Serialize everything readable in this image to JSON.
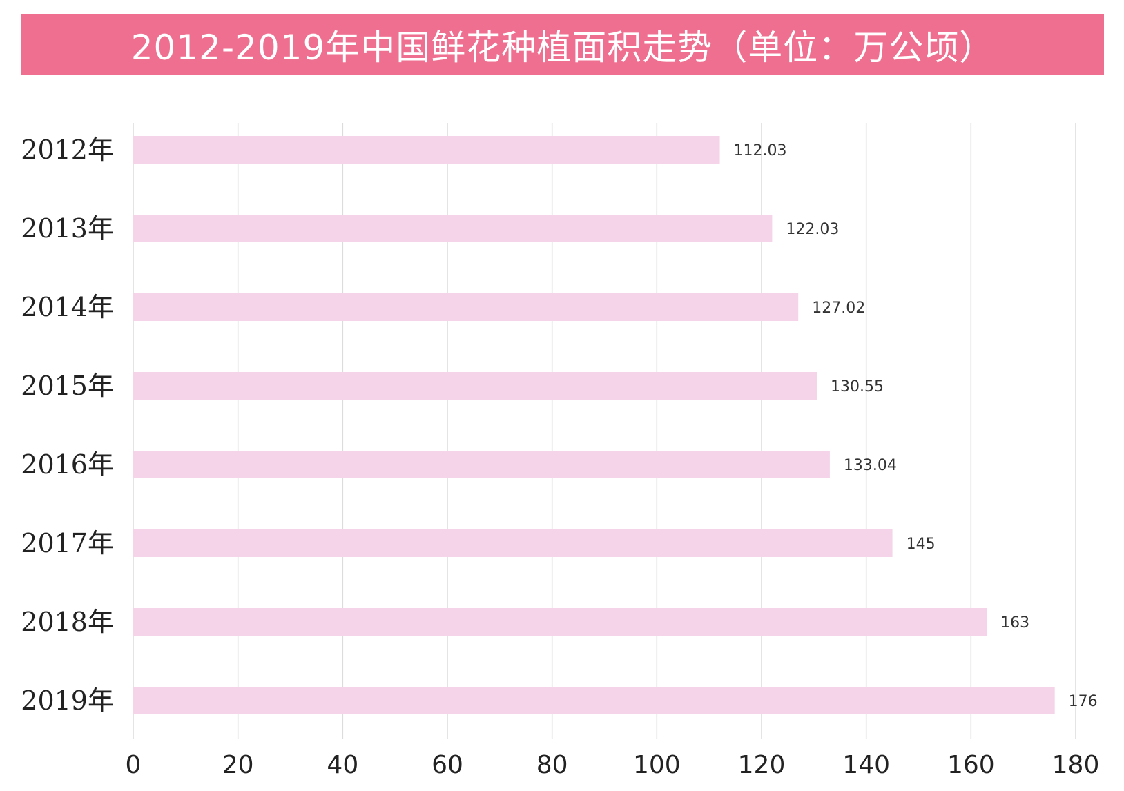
{
  "chart_data": {
    "type": "bar",
    "orientation": "horizontal",
    "title": "2012-2019年中国鲜花种植面积走势（单位：万公顷）",
    "categories": [
      "2012年",
      "2013年",
      "2014年",
      "2015年",
      "2016年",
      "2017年",
      "2018年",
      "2019年"
    ],
    "values": [
      112.03,
      122.03,
      127.02,
      130.55,
      133.04,
      145,
      163,
      176
    ],
    "value_labels": [
      "112.03",
      "122.03",
      "127.02",
      "130.55",
      "133.04",
      "145",
      "163",
      "176"
    ],
    "xlim": [
      0,
      180
    ],
    "xticks": [
      0,
      20,
      40,
      60,
      80,
      100,
      120,
      140,
      160,
      180
    ],
    "xlabel": "",
    "ylabel": "",
    "grid": true,
    "legend": "none"
  },
  "colors": {
    "title_background": "#ef6f90",
    "title_text": "#ffffff",
    "bar": "#f5d4ea",
    "grid": "#dcdcdc"
  }
}
